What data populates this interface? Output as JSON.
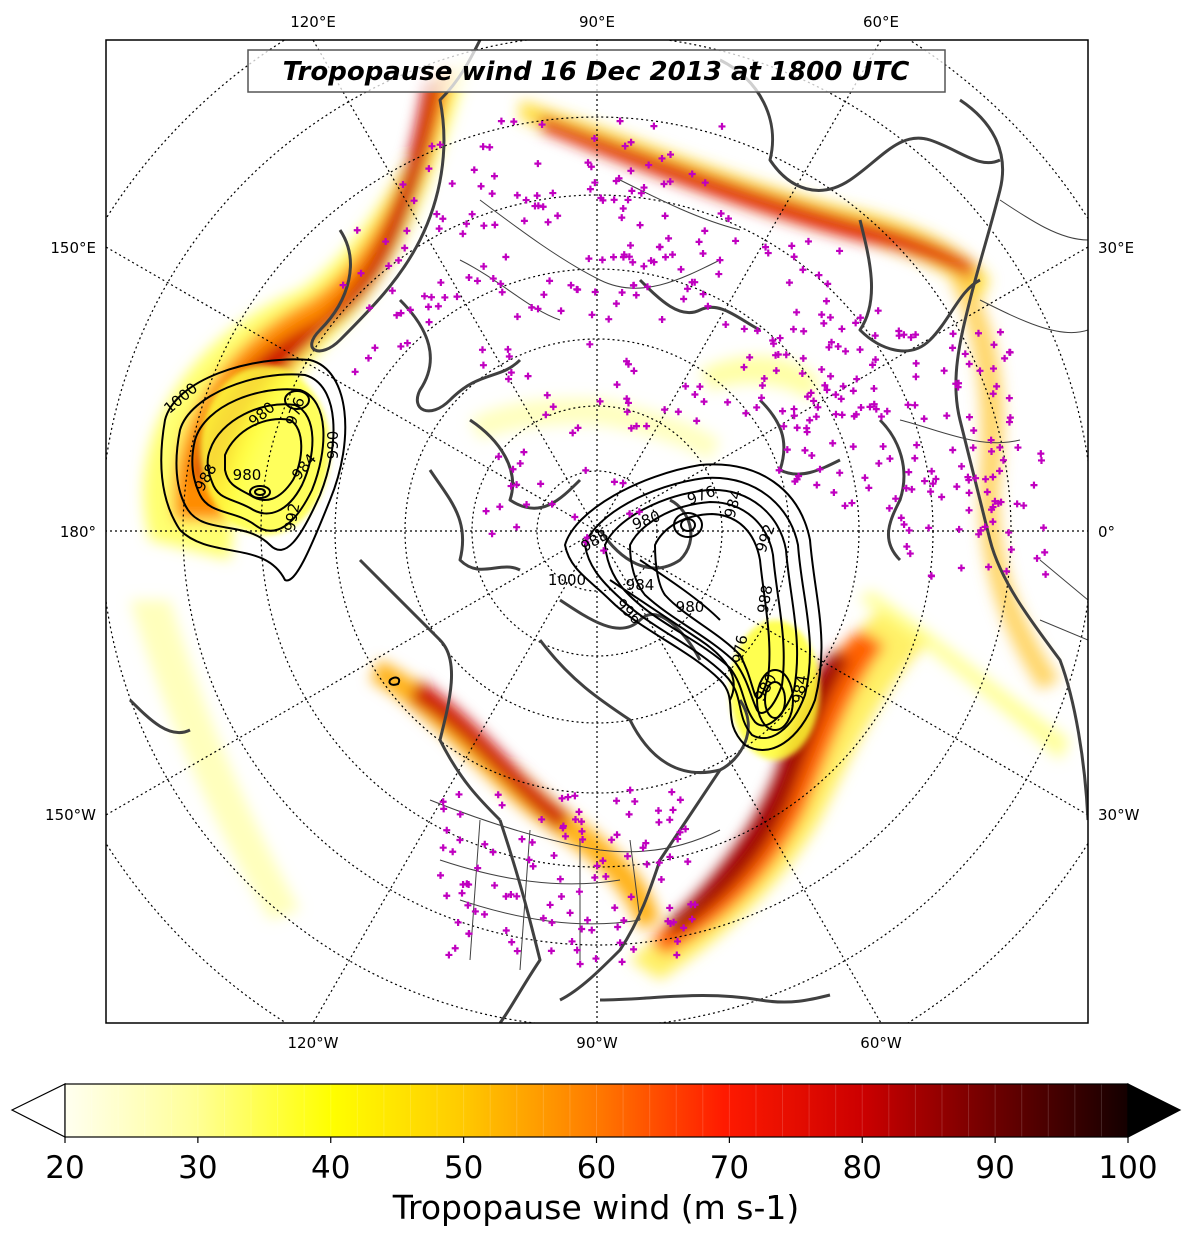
{
  "map": {
    "title": "Tropopause wind 16 Dec 2013 at 1800 UTC",
    "projection": "north-polar-stereographic",
    "field": "tropopause wind speed (filled) with mean sea level pressure contours (hPa) and station markers",
    "lon_labels": {
      "top": [
        "120°E",
        "90°E",
        "60°E"
      ],
      "bottom": [
        "120°W",
        "90°W",
        "60°W"
      ],
      "left": [
        "150°E",
        "180°",
        "150°W"
      ],
      "right": [
        "30°E",
        "0°",
        "30°W"
      ]
    },
    "pressure_contour_labels": {
      "pacific_low": [
        "1000",
        "980",
        "976",
        "988",
        "980",
        "984",
        "990",
        "992"
      ],
      "atlantic_low": [
        "988",
        "980",
        "976",
        "984",
        "992",
        "1000",
        "996",
        "980",
        "984",
        "976",
        "980",
        "984",
        "988"
      ]
    },
    "colors": {
      "coast": "#404040",
      "station_marker": "#c000c0",
      "contour": "#000000",
      "grid": "#000000"
    }
  },
  "colorbar": {
    "label": "Tropopause wind (m s-1)",
    "ticks": [
      "20",
      "30",
      "40",
      "50",
      "60",
      "70",
      "80",
      "90",
      "100"
    ],
    "vmin": 20,
    "vmax": 100,
    "extend": "both",
    "colormap": "hot_r"
  }
}
